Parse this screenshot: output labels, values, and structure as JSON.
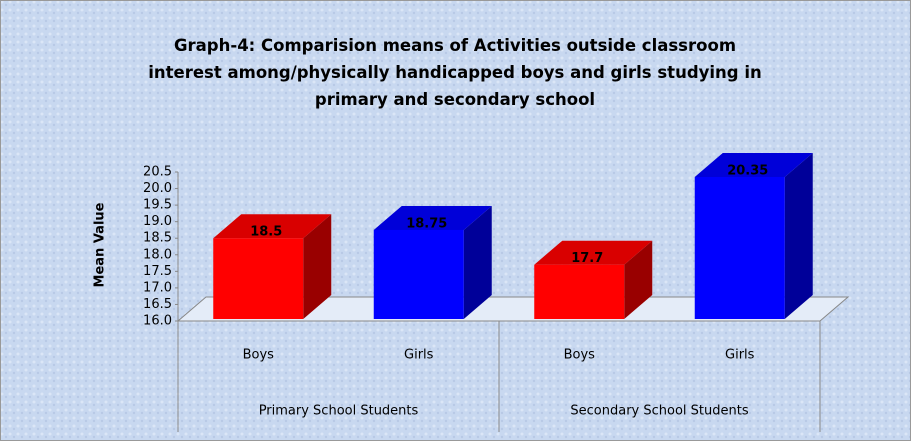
{
  "chart_data": {
    "type": "bar3d",
    "title": "Graph-4: Comparision means of Activities outside classroom interest among/physically handicapped boys and girls studying in primary and secondary school",
    "y_axis_label": "Mean Value",
    "categories": [
      "Boys",
      "Girls",
      "Boys",
      "Girls"
    ],
    "groups": [
      "Primary School Students",
      "Secondary School Students"
    ],
    "values": [
      18.5,
      18.75,
      17.7,
      20.35
    ],
    "colors": [
      "#ff0000",
      "#0000ff",
      "#ff0000",
      "#0000ff"
    ],
    "ylim": [
      16,
      20.5
    ],
    "yticks": [
      {
        "value": 16,
        "label": "16.0"
      },
      16.5,
      {
        "value": 17,
        "label": "17.0"
      },
      17.5,
      {
        "value": 18,
        "label": "18.0"
      },
      18.5,
      {
        "value": 19,
        "label": "19.0"
      },
      19.5,
      {
        "value": 20,
        "label": "20.0"
      },
      20.5
    ]
  }
}
